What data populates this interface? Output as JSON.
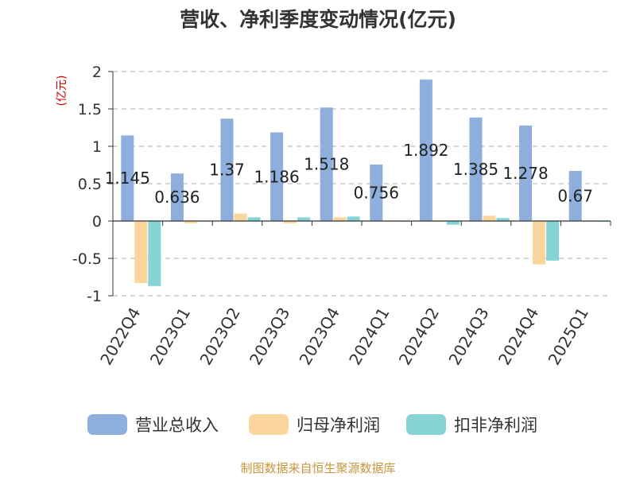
{
  "chart_data": {
    "type": "bar",
    "title": "营收、净利季度变动情况(亿元)",
    "ylabel": "(亿元)",
    "xlabel": "",
    "categories": [
      "2022Q4",
      "2023Q1",
      "2023Q2",
      "2023Q3",
      "2023Q4",
      "2024Q1",
      "2024Q2",
      "2024Q3",
      "2024Q4",
      "2025Q1"
    ],
    "ylim": [
      -1,
      2
    ],
    "yticks": [
      -1,
      -0.5,
      0,
      0.5,
      1,
      1.5,
      2
    ],
    "ytick_labels": [
      "-1",
      "-0.5",
      "0",
      "0.5",
      "1",
      "1.5",
      "2"
    ],
    "grid": true,
    "legend_position": "bottom",
    "series": [
      {
        "name": "营业总收入",
        "color": "#8eaedd",
        "values": [
          1.145,
          0.636,
          1.37,
          1.186,
          1.518,
          0.756,
          1.892,
          1.385,
          1.278,
          0.67
        ],
        "labels": [
          "1.145",
          "0.636",
          "1.37",
          "1.186",
          "1.518",
          "0.756",
          "1.892",
          "1.385",
          "1.278",
          "0.67"
        ]
      },
      {
        "name": "归母净利润",
        "color": "#fbd59b",
        "values": [
          -0.83,
          -0.03,
          0.1,
          -0.03,
          0.05,
          -0.01,
          -0.01,
          0.07,
          -0.58,
          -0.01
        ]
      },
      {
        "name": "扣非净利润",
        "color": "#86d4d6",
        "values": [
          -0.87,
          0.0,
          0.05,
          0.05,
          0.06,
          -0.01,
          -0.05,
          0.04,
          -0.53,
          -0.01
        ]
      }
    ],
    "source": "制图数据来自恒生聚源数据库",
    "colors": {
      "title": "#333333",
      "axis_label": "#cc0000",
      "source": "#c8963e",
      "grid": "#bfbfbf",
      "tick_text": "#333333"
    }
  }
}
